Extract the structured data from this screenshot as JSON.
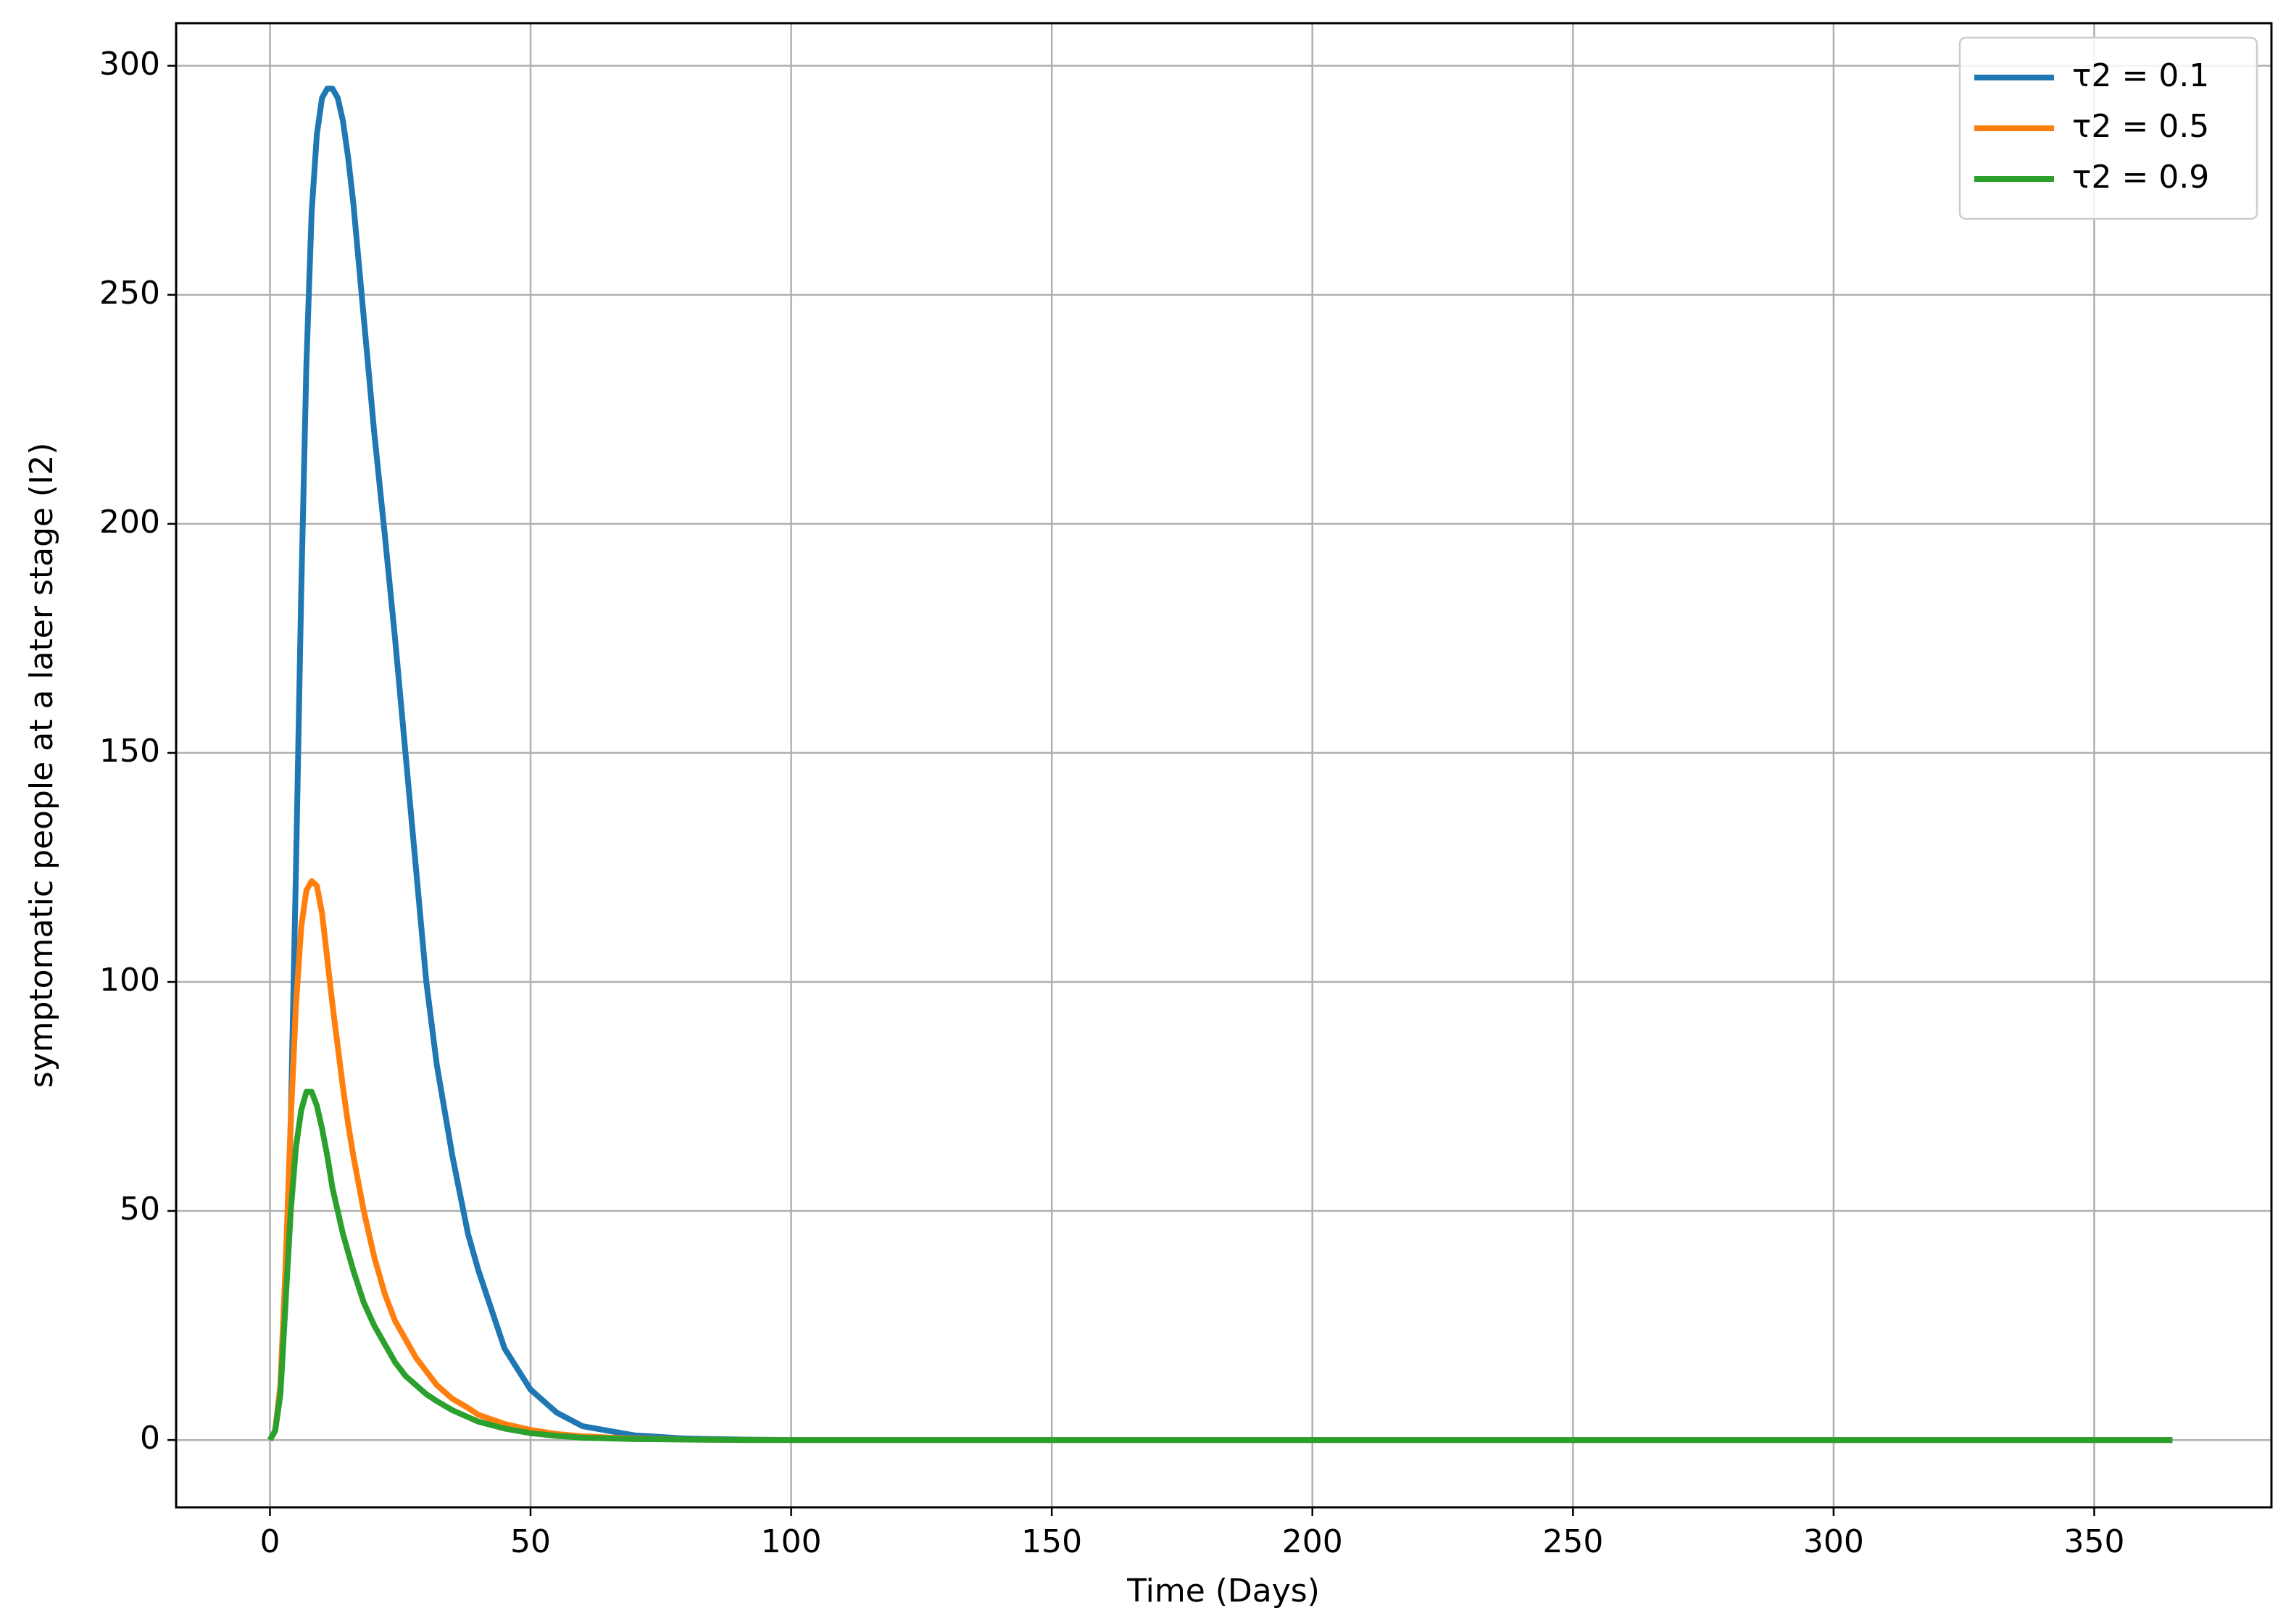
{
  "chart_data": {
    "type": "line",
    "x_label": "Time (Days)",
    "y_label": "symptomatic people at a later stage (I2)",
    "x": [
      0,
      1,
      2,
      3,
      4,
      5,
      6,
      7,
      8,
      9,
      10,
      11,
      12,
      13,
      14,
      15,
      16,
      18,
      20,
      22,
      24,
      26,
      28,
      30,
      32,
      35,
      38,
      40,
      45,
      50,
      55,
      60,
      70,
      80,
      90,
      100,
      150,
      200,
      250,
      300,
      365
    ],
    "series": [
      {
        "name": "τ2 = 0.1",
        "color": "#1f77b4",
        "values": [
          0,
          2,
          10,
          30,
          70,
          125,
          185,
          235,
          268,
          285,
          293,
          295,
          295,
          293,
          288,
          280,
          270,
          245,
          220,
          198,
          175,
          150,
          125,
          100,
          82,
          62,
          45,
          37,
          20,
          11,
          6,
          3,
          1,
          0.3,
          0.1,
          0,
          0,
          0,
          0,
          0,
          0
        ]
      },
      {
        "name": "τ2 = 0.5",
        "color": "#ff7f0e",
        "values": [
          0,
          2,
          12,
          38,
          70,
          95,
          112,
          120,
          122,
          121,
          115,
          105,
          95,
          86,
          77,
          69,
          62,
          50,
          40,
          32,
          26,
          22,
          18,
          15,
          12,
          9,
          7,
          5.5,
          3.5,
          2.2,
          1.3,
          0.8,
          0.3,
          0.1,
          0,
          0,
          0,
          0,
          0,
          0,
          0
        ]
      },
      {
        "name": "τ2 = 0.9",
        "color": "#2ca02c",
        "values": [
          0,
          2,
          10,
          30,
          50,
          64,
          72,
          76,
          76,
          73,
          68,
          62,
          55,
          50,
          45,
          41,
          37,
          30,
          25,
          21,
          17,
          14,
          12,
          10,
          8.5,
          6.5,
          5,
          4,
          2.5,
          1.5,
          0.9,
          0.5,
          0.2,
          0.1,
          0,
          0,
          0,
          0,
          0,
          0,
          0
        ]
      }
    ],
    "xlim": [
      -18,
      384
    ],
    "ylim": [
      -14.7,
      309.3
    ],
    "xticks": [
      0,
      50,
      100,
      150,
      200,
      250,
      300,
      350
    ],
    "yticks": [
      0,
      50,
      100,
      150,
      200,
      250,
      300
    ],
    "grid": true,
    "legend": "upper right"
  }
}
